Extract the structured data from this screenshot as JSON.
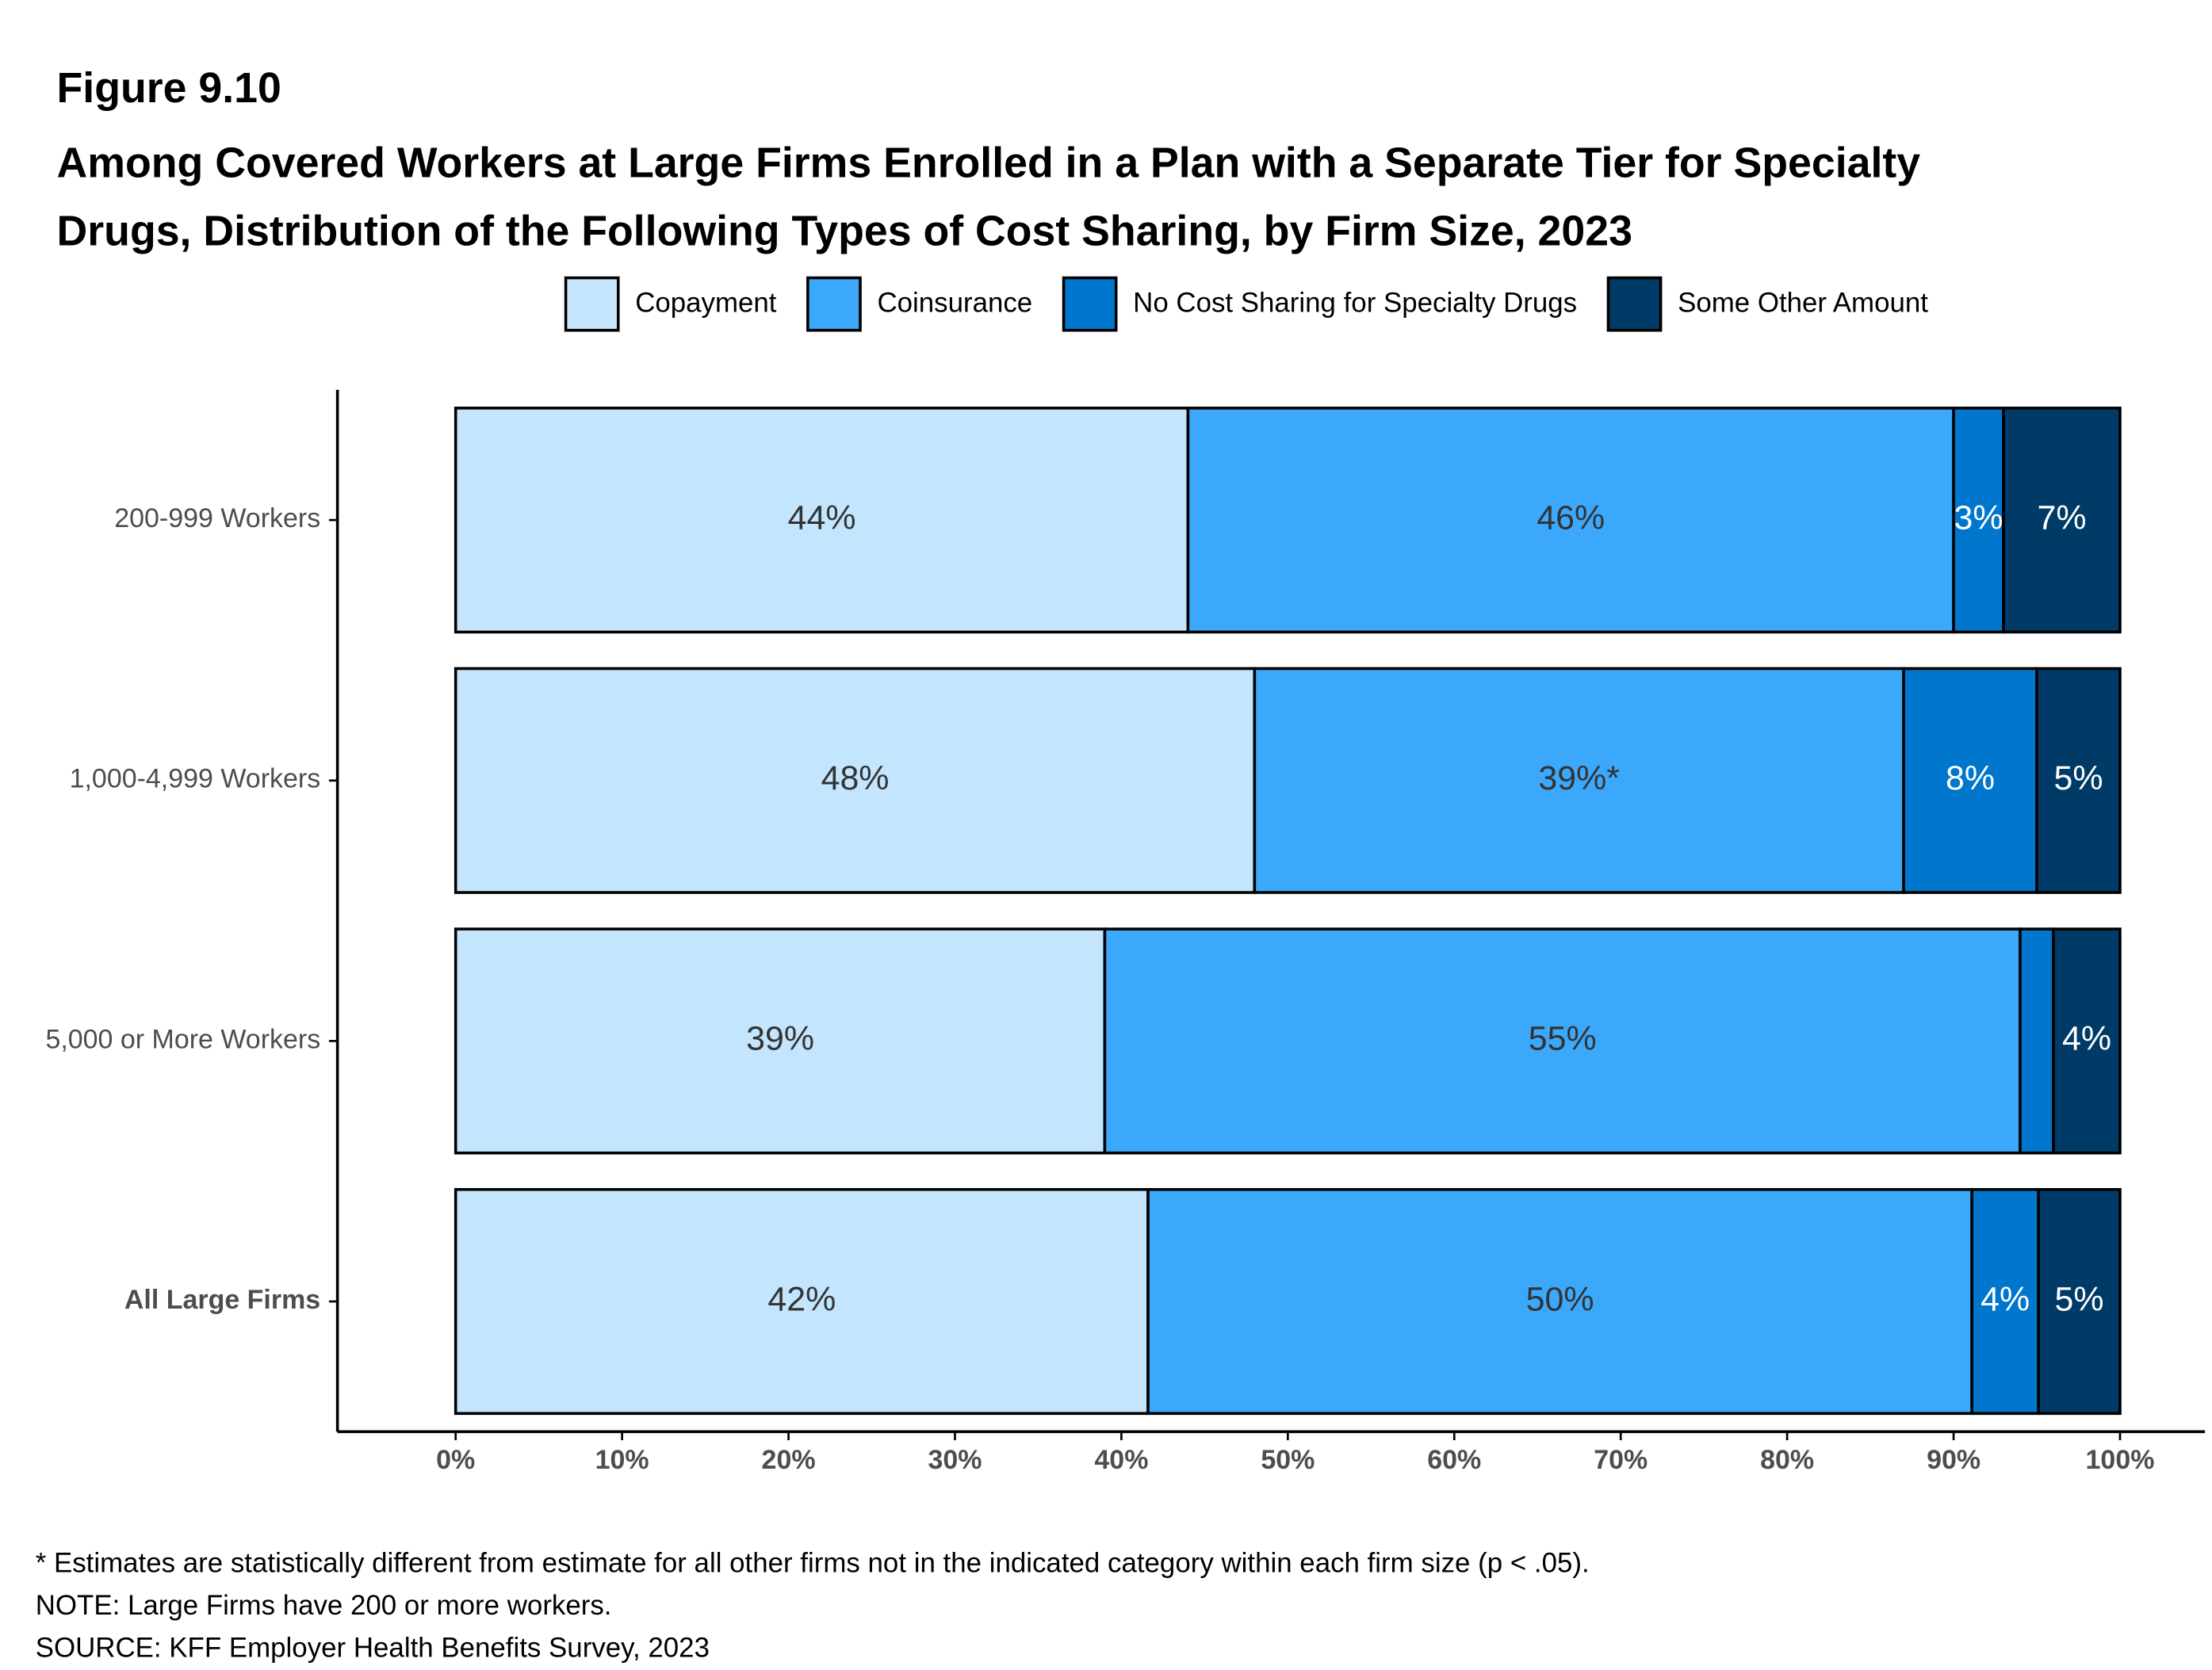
{
  "chart_data": {
    "type": "stacked-bar-horizontal",
    "figure_label": "Figure 9.10",
    "title": "Among Covered Workers at Large Firms Enrolled in a Plan with a Separate Tier for Specialty Drugs, Distribution of the Following Types of Cost Sharing, by Firm Size, 2023",
    "categories": [
      "200-999 Workers",
      "1,000-4,999 Workers",
      "5,000 or More Workers",
      "All Large Firms"
    ],
    "series": [
      {
        "name": "Copayment",
        "color": "#c3e5fd",
        "label_color": "#333333",
        "values": [
          44,
          48,
          39,
          41.6
        ],
        "value_labels": [
          "44%",
          "48%",
          "39%",
          "42%"
        ]
      },
      {
        "name": "Coinsurance",
        "color": "#3ca8fb",
        "label_color": "#333333",
        "values": [
          46,
          39,
          55,
          49.5
        ],
        "value_labels": [
          "46%",
          "39%*",
          "55%",
          "50%"
        ]
      },
      {
        "name": "No Cost Sharing for Specialty Drugs",
        "color": "#0077cc",
        "label_color": "#ffffff",
        "values": [
          3,
          8,
          2,
          4
        ],
        "value_labels": [
          "3%",
          "8%",
          null,
          "4%"
        ]
      },
      {
        "name": "Some Other Amount",
        "color": "#003a66",
        "label_color": "#ffffff",
        "values": [
          7,
          5,
          4,
          4.9
        ],
        "value_labels": [
          "7%",
          "5%",
          "4%",
          "5%"
        ]
      }
    ],
    "xlim": [
      -7.1,
      105.1
    ],
    "xticks": [
      {
        "value": 0,
        "label": "0%"
      },
      {
        "value": 10,
        "label": "10%"
      },
      {
        "value": 20,
        "label": "20%"
      },
      {
        "value": 30,
        "label": "30%"
      },
      {
        "value": 40,
        "label": "40%"
      },
      {
        "value": 50,
        "label": "50%"
      },
      {
        "value": 60,
        "label": "60%"
      },
      {
        "value": 70,
        "label": "70%"
      },
      {
        "value": 80,
        "label": "80%"
      },
      {
        "value": 90,
        "label": "90%"
      },
      {
        "value": 100,
        "label": "100%"
      }
    ],
    "legend": "top",
    "notes": [
      "* Estimates are statistically different from estimate for all other firms not in the indicated category within each firm size (p < .05).",
      "NOTE: Large Firms have 200 or more workers.",
      "SOURCE: KFF Employer Health Benefits Survey, 2023"
    ]
  }
}
